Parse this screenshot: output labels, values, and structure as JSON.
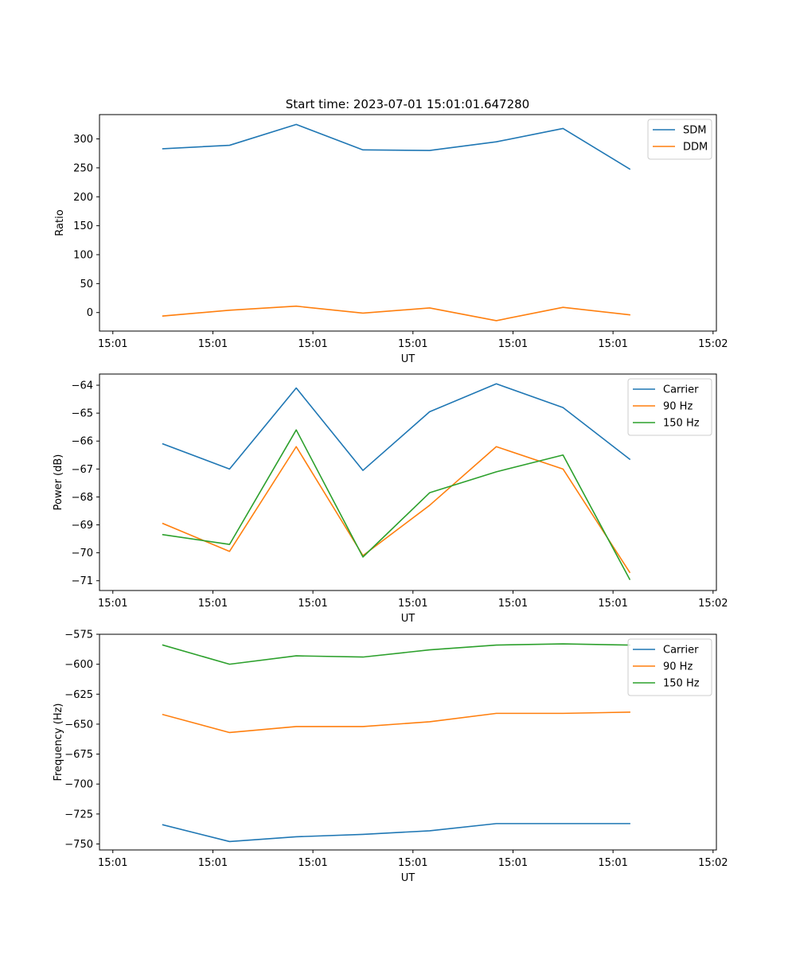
{
  "figure_title": "Start time: 2023-07-01 15:01:01.647280",
  "colors": {
    "series_1": "#1f77b4",
    "series_2": "#ff7f0e",
    "series_3": "#2ca02c",
    "axis": "#000000",
    "background": "#ffffff"
  },
  "chart_data": [
    {
      "type": "line",
      "title": "Start time: 2023-07-01 15:01:01.647280",
      "xlabel": "UT",
      "ylabel": "Ratio",
      "x": [
        0,
        1,
        2,
        3,
        4,
        5,
        6,
        7
      ],
      "x_ticks": [
        -0.75,
        0.75,
        2.25,
        3.75,
        5.25,
        6.75,
        8.25
      ],
      "x_tick_labels": [
        "15:01",
        "15:01",
        "15:01",
        "15:01",
        "15:01",
        "15:01",
        "15:02"
      ],
      "xlim": [
        -0.95,
        8.3
      ],
      "ylim": [
        -32,
        342
      ],
      "y_ticks": [
        0,
        50,
        100,
        150,
        200,
        250,
        300
      ],
      "y_tick_labels": [
        "0",
        "50",
        "100",
        "150",
        "200",
        "250",
        "300"
      ],
      "legend": "upper-right",
      "grid": false,
      "series": [
        {
          "name": "SDM",
          "color": "#1f77b4",
          "values": [
            283,
            289,
            325,
            281,
            280,
            295,
            318,
            248
          ]
        },
        {
          "name": "DDM",
          "color": "#ff7f0e",
          "values": [
            -6,
            4,
            11,
            -1,
            8,
            -14,
            9,
            -4
          ]
        }
      ]
    },
    {
      "type": "line",
      "title": "",
      "xlabel": "UT",
      "ylabel": "Power (dB)",
      "x": [
        0,
        1,
        2,
        3,
        4,
        5,
        6,
        7
      ],
      "x_ticks": [
        -0.75,
        0.75,
        2.25,
        3.75,
        5.25,
        6.75,
        8.25
      ],
      "x_tick_labels": [
        "15:01",
        "15:01",
        "15:01",
        "15:01",
        "15:01",
        "15:01",
        "15:02"
      ],
      "xlim": [
        -0.95,
        8.3
      ],
      "ylim": [
        -71.35,
        -63.6
      ],
      "y_ticks": [
        -71,
        -70,
        -69,
        -68,
        -67,
        -66,
        -65,
        -64
      ],
      "y_tick_labels": [
        "−71",
        "−70",
        "−69",
        "−68",
        "−67",
        "−66",
        "−65",
        "−64"
      ],
      "legend": "upper-right",
      "grid": false,
      "series": [
        {
          "name": "Carrier",
          "color": "#1f77b4",
          "values": [
            -66.1,
            -67.0,
            -64.1,
            -67.05,
            -64.95,
            -63.95,
            -64.8,
            -66.65
          ]
        },
        {
          "name": "90 Hz",
          "color": "#ff7f0e",
          "values": [
            -68.95,
            -69.95,
            -66.2,
            -70.1,
            -68.3,
            -66.2,
            -67.0,
            -70.7
          ]
        },
        {
          "name": "150 Hz",
          "color": "#2ca02c",
          "values": [
            -69.35,
            -69.7,
            -65.6,
            -70.15,
            -67.85,
            -67.1,
            -66.5,
            -70.95
          ]
        }
      ]
    },
    {
      "type": "line",
      "title": "",
      "xlabel": "UT",
      "ylabel": "Frequency (Hz)",
      "x": [
        0,
        1,
        2,
        3,
        4,
        5,
        6,
        7
      ],
      "x_ticks": [
        -0.75,
        0.75,
        2.25,
        3.75,
        5.25,
        6.75,
        8.25
      ],
      "x_tick_labels": [
        "15:01",
        "15:01",
        "15:01",
        "15:01",
        "15:01",
        "15:01",
        "15:02"
      ],
      "xlim": [
        -0.95,
        8.3
      ],
      "ylim": [
        -755,
        -575
      ],
      "y_ticks": [
        -750,
        -725,
        -700,
        -675,
        -650,
        -625,
        -600,
        -575
      ],
      "y_tick_labels": [
        "−750",
        "−725",
        "−700",
        "−675",
        "−650",
        "−625",
        "−600",
        "−575"
      ],
      "legend": "upper-right",
      "grid": false,
      "series": [
        {
          "name": "Carrier",
          "color": "#1f77b4",
          "values": [
            -734,
            -748,
            -744,
            -742,
            -739,
            -733,
            -733,
            -733
          ]
        },
        {
          "name": "90 Hz",
          "color": "#ff7f0e",
          "values": [
            -642,
            -657,
            -652,
            -652,
            -648,
            -641,
            -641,
            -640
          ]
        },
        {
          "name": "150 Hz",
          "color": "#2ca02c",
          "values": [
            -584,
            -600,
            -593,
            -594,
            -588,
            -584,
            -583,
            -584
          ]
        }
      ]
    }
  ]
}
